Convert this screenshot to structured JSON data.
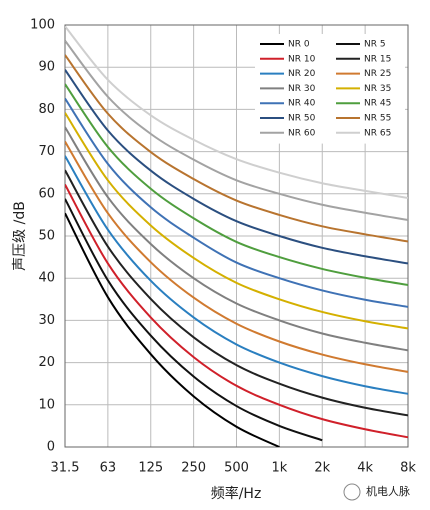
{
  "chart_data": {
    "type": "line",
    "y_label": "声压级 /dB",
    "x_label": "频率/Hz",
    "watermark": "机电人脉",
    "categories": [
      "31.5",
      "63",
      "125",
      "250",
      "500",
      "1k",
      "2k",
      "4k",
      "8k"
    ],
    "ylim": [
      0,
      100
    ],
    "yticks": [
      0,
      10,
      20,
      30,
      40,
      50,
      60,
      70,
      80,
      90,
      100
    ],
    "grid": true,
    "legend": "upper right",
    "series": [
      {
        "name": "NR 0",
        "color": "#000000",
        "values": [
          55.4,
          35.5,
          22.0,
          12.0,
          4.8,
          0,
          null,
          null,
          null
        ]
      },
      {
        "name": "NR 5",
        "color": "#111111",
        "values": [
          58.8,
          39.5,
          26.4,
          16.7,
          9.7,
          5,
          1.6,
          null,
          null
        ]
      },
      {
        "name": "NR 10",
        "color": "#d0202a",
        "values": [
          62.2,
          43.5,
          30.7,
          21.3,
          14.5,
          10,
          6.6,
          4.2,
          2.3
        ]
      },
      {
        "name": "NR 15",
        "color": "#222222",
        "values": [
          65.6,
          47.5,
          35.1,
          26.0,
          19.4,
          15,
          11.7,
          9.3,
          7.5
        ]
      },
      {
        "name": "NR 20",
        "color": "#2a7fc0",
        "values": [
          69.0,
          51.5,
          39.4,
          30.7,
          24.3,
          20,
          16.8,
          14.4,
          12.6
        ]
      },
      {
        "name": "NR 25",
        "color": "#d07a30",
        "values": [
          72.4,
          55.4,
          43.8,
          35.4,
          29.2,
          25,
          21.9,
          19.6,
          17.8
        ]
      },
      {
        "name": "NR 30",
        "color": "#808080",
        "values": [
          75.8,
          59.2,
          48.1,
          40.0,
          34.0,
          30,
          26.9,
          24.7,
          22.9
        ]
      },
      {
        "name": "NR 35",
        "color": "#d4b000",
        "values": [
          79.2,
          63.2,
          52.5,
          44.8,
          38.9,
          35,
          32.0,
          29.8,
          28.1
        ]
      },
      {
        "name": "NR 40",
        "color": "#3f72b5",
        "values": [
          82.6,
          67.1,
          56.8,
          49.6,
          43.7,
          40,
          37.1,
          34.9,
          33.2
        ]
      },
      {
        "name": "NR 45",
        "color": "#4f9e3e",
        "values": [
          86.0,
          71.1,
          61.2,
          54.2,
          48.6,
          45,
          42.2,
          40.1,
          38.4
        ]
      },
      {
        "name": "NR 50",
        "color": "#2b4f80",
        "values": [
          89.4,
          75.0,
          65.5,
          58.8,
          53.5,
          50,
          47.2,
          45.2,
          43.5
        ]
      },
      {
        "name": "NR 55",
        "color": "#b8742f",
        "values": [
          92.9,
          79.0,
          69.9,
          63.5,
          58.4,
          55,
          52.3,
          50.4,
          48.7
        ]
      },
      {
        "name": "NR 60",
        "color": "#a3a3a3",
        "values": [
          96.3,
          83.0,
          74.2,
          68.1,
          63.2,
          60,
          57.4,
          55.5,
          53.8
        ]
      },
      {
        "name": "NR 65",
        "color": "#cfcfcf",
        "values": [
          99.7,
          87.0,
          78.6,
          72.8,
          68.2,
          65,
          62.5,
          60.7,
          59.0
        ]
      }
    ]
  }
}
